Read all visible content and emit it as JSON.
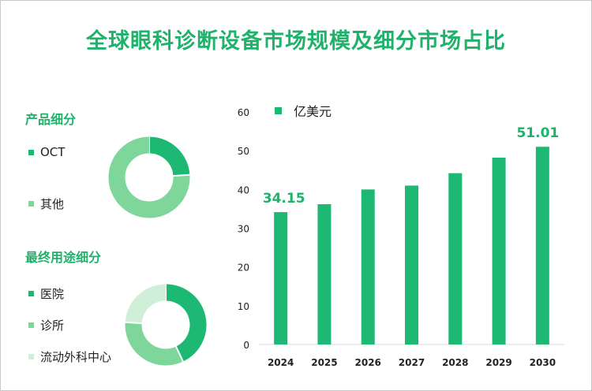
{
  "title": "全球眼科诊断设备市场规模及细分市场占比",
  "product_section": {
    "title": "产品细分",
    "legend": [
      "OCT",
      "其他"
    ]
  },
  "enduse_section": {
    "title": "最终用途细分",
    "legend": [
      "医院",
      "诊所",
      "流动外科中心"
    ]
  },
  "colors": {
    "title_green": "#20b26b",
    "bar": "#1db874",
    "seg1": "#1db874",
    "seg2": "#7ed69b",
    "seg3": "#d0efd9"
  },
  "chart_data": [
    {
      "type": "bar",
      "categories": [
        "2024",
        "2025",
        "2026",
        "2027",
        "2028",
        "2029",
        "2030"
      ],
      "series": [
        {
          "name": "亿美元",
          "values": [
            34.15,
            36.2,
            40.0,
            41.0,
            44.2,
            48.2,
            51.01
          ]
        }
      ],
      "data_labels": [
        "34.15",
        "51.01"
      ],
      "ylim": [
        0,
        60
      ],
      "yticks": [
        0,
        10,
        20,
        30,
        40,
        50,
        60
      ],
      "legend_position": "top-left",
      "grid": false
    },
    {
      "type": "pie",
      "categories": [
        "OCT",
        "其他"
      ],
      "values": [
        24,
        76
      ]
    },
    {
      "type": "pie",
      "categories": [
        "医院",
        "诊所",
        "流动外科中心"
      ],
      "values": [
        43,
        33,
        24
      ]
    }
  ]
}
